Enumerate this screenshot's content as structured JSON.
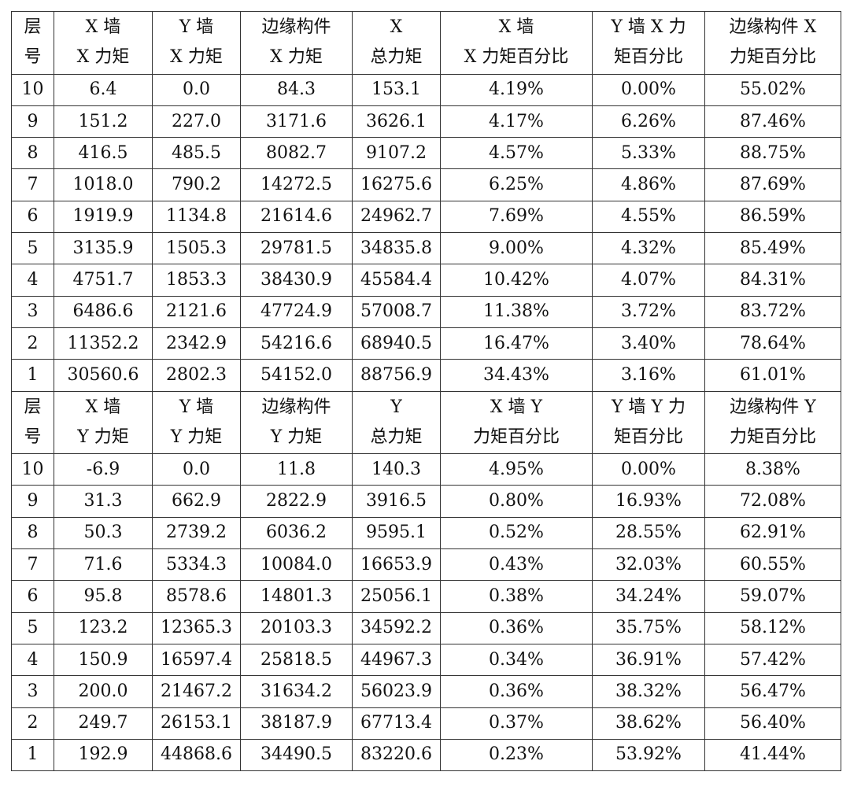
{
  "tables": [
    {
      "header": [
        [
          "层",
          "号"
        ],
        [
          "X 墙",
          "X 力矩"
        ],
        [
          "Y 墙",
          "X 力矩"
        ],
        [
          "边缘构件",
          "X 力矩"
        ],
        [
          "X",
          "总力矩"
        ],
        [
          "X 墙",
          "X 力矩百分比"
        ],
        [
          "Y 墙 X 力",
          "矩百分比"
        ],
        [
          "边缘构件 X",
          "力矩百分比"
        ]
      ],
      "rows": [
        [
          "10",
          "6.4",
          "0.0",
          "84.3",
          "153.1",
          "4.19%",
          "0.00%",
          "55.02%"
        ],
        [
          "9",
          "151.2",
          "227.0",
          "3171.6",
          "3626.1",
          "4.17%",
          "6.26%",
          "87.46%"
        ],
        [
          "8",
          "416.5",
          "485.5",
          "8082.7",
          "9107.2",
          "4.57%",
          "5.33%",
          "88.75%"
        ],
        [
          "7",
          "1018.0",
          "790.2",
          "14272.5",
          "16275.6",
          "6.25%",
          "4.86%",
          "87.69%"
        ],
        [
          "6",
          "1919.9",
          "1134.8",
          "21614.6",
          "24962.7",
          "7.69%",
          "4.55%",
          "86.59%"
        ],
        [
          "5",
          "3135.9",
          "1505.3",
          "29781.5",
          "34835.8",
          "9.00%",
          "4.32%",
          "85.49%"
        ],
        [
          "4",
          "4751.7",
          "1853.3",
          "38430.9",
          "45584.4",
          "10.42%",
          "4.07%",
          "84.31%"
        ],
        [
          "3",
          "6486.6",
          "2121.6",
          "47724.9",
          "57008.7",
          "11.38%",
          "3.72%",
          "83.72%"
        ],
        [
          "2",
          "11352.2",
          "2342.9",
          "54216.6",
          "68940.5",
          "16.47%",
          "3.40%",
          "78.64%"
        ],
        [
          "1",
          "30560.6",
          "2802.3",
          "54152.0",
          "88756.9",
          "34.43%",
          "3.16%",
          "61.01%"
        ]
      ]
    },
    {
      "header": [
        [
          "层",
          "号"
        ],
        [
          "X 墙",
          "Y 力矩"
        ],
        [
          "Y 墙",
          "Y 力矩"
        ],
        [
          "边缘构件",
          "Y 力矩"
        ],
        [
          "Y",
          "总力矩"
        ],
        [
          "X 墙 Y",
          "力矩百分比"
        ],
        [
          "Y 墙 Y 力",
          "矩百分比"
        ],
        [
          "边缘构件 Y",
          "力矩百分比"
        ]
      ],
      "rows": [
        [
          "10",
          "-6.9",
          "0.0",
          "11.8",
          "140.3",
          "4.95%",
          "0.00%",
          "8.38%"
        ],
        [
          "9",
          "31.3",
          "662.9",
          "2822.9",
          "3916.5",
          "0.80%",
          "16.93%",
          "72.08%"
        ],
        [
          "8",
          "50.3",
          "2739.2",
          "6036.2",
          "9595.1",
          "0.52%",
          "28.55%",
          "62.91%"
        ],
        [
          "7",
          "71.6",
          "5334.3",
          "10084.0",
          "16653.9",
          "0.43%",
          "32.03%",
          "60.55%"
        ],
        [
          "6",
          "95.8",
          "8578.6",
          "14801.3",
          "25056.1",
          "0.38%",
          "34.24%",
          "59.07%"
        ],
        [
          "5",
          "123.2",
          "12365.3",
          "20103.3",
          "34592.2",
          "0.36%",
          "35.75%",
          "58.12%"
        ],
        [
          "4",
          "150.9",
          "16597.4",
          "25818.5",
          "44967.3",
          "0.34%",
          "36.91%",
          "57.42%"
        ],
        [
          "3",
          "200.0",
          "21467.2",
          "31634.2",
          "56023.9",
          "0.36%",
          "38.32%",
          "56.47%"
        ],
        [
          "2",
          "249.7",
          "26153.1",
          "38187.9",
          "67713.4",
          "0.37%",
          "38.62%",
          "56.40%"
        ],
        [
          "1",
          "192.9",
          "44868.6",
          "34490.5",
          "83220.6",
          "0.23%",
          "53.92%",
          "41.44%"
        ]
      ]
    }
  ]
}
